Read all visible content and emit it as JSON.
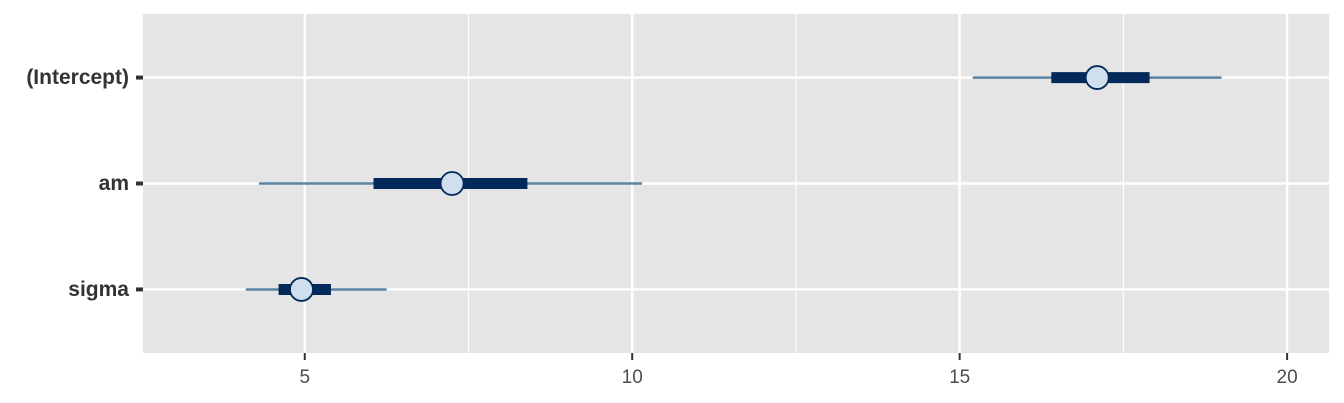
{
  "chart_data": {
    "type": "interval",
    "title": "",
    "xlabel": "",
    "ylabel": "",
    "xlim": [
      2.53,
      20.64
    ],
    "x_ticks": [
      5,
      10,
      15,
      20
    ],
    "x_tick_labels": [
      "5",
      "10",
      "15",
      "20"
    ],
    "grid": true,
    "colors": {
      "panel": "#e5e5e5",
      "grid": "#ffffff",
      "outer_interval": "#5b84a4",
      "inner_interval": "#03295b",
      "point_fill": "#cfdfee",
      "point_stroke": "#03295b",
      "axis_text": "#4d4d4d",
      "y_text": "#333333"
    },
    "parameters": [
      {
        "name": "(Intercept)",
        "point": 17.1,
        "inner": [
          16.4,
          17.9
        ],
        "outer": [
          15.2,
          19.0
        ]
      },
      {
        "name": "am",
        "point": 7.25,
        "inner": [
          6.05,
          8.4
        ],
        "outer": [
          4.3,
          10.15
        ]
      },
      {
        "name": "sigma",
        "point": 4.95,
        "inner": [
          4.6,
          5.4
        ],
        "outer": [
          4.1,
          6.25
        ]
      }
    ]
  }
}
